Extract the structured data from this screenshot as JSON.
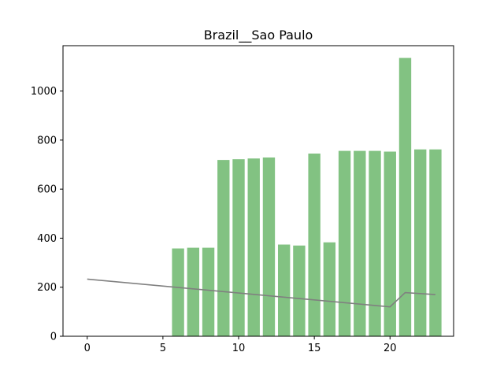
{
  "chart_data": {
    "type": "bar",
    "title": "Brazil__Sao Paulo",
    "xlabel": "",
    "ylabel": "",
    "xlim": [
      -1.6,
      24.2
    ],
    "ylim": [
      0,
      1185
    ],
    "xticks": [
      0,
      5,
      10,
      15,
      20
    ],
    "yticks": [
      0,
      200,
      400,
      600,
      800,
      1000
    ],
    "grid": false,
    "bar_color": "#82c282",
    "line_color": "#808080",
    "series": [
      {
        "type": "bar",
        "x": [
          6,
          7,
          8,
          9,
          10,
          11,
          12,
          13,
          14,
          15,
          16,
          17,
          18,
          19,
          20,
          21,
          22,
          23
        ],
        "values": [
          358,
          361,
          361,
          719,
          722,
          725,
          729,
          374,
          370,
          745,
          383,
          756,
          756,
          756,
          753,
          1135,
          762,
          762
        ]
      },
      {
        "type": "line",
        "x": [
          0,
          20,
          21,
          23
        ],
        "values": [
          233,
          120,
          178,
          170
        ]
      }
    ]
  }
}
